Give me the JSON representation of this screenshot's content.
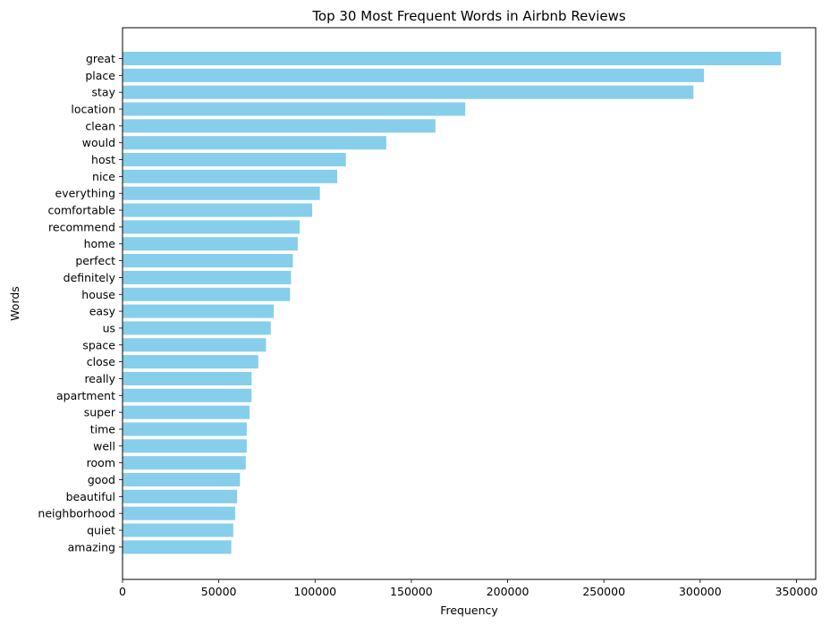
{
  "chart_data": {
    "type": "bar",
    "orientation": "horizontal",
    "title": "Top 30 Most Frequent Words in Airbnb Reviews",
    "xlabel": "Frequency",
    "ylabel": "Words",
    "xlim": [
      0,
      360000
    ],
    "xticks": [
      0,
      50000,
      100000,
      150000,
      200000,
      250000,
      300000,
      350000
    ],
    "xtick_labels": [
      "0",
      "50000",
      "100000",
      "150000",
      "200000",
      "250000",
      "300000",
      "350000"
    ],
    "bar_color": "#87ceeb",
    "grid": false,
    "categories": [
      "great",
      "place",
      "stay",
      "location",
      "clean",
      "would",
      "host",
      "nice",
      "everything",
      "comfortable",
      "recommend",
      "home",
      "perfect",
      "definitely",
      "house",
      "easy",
      "us",
      "space",
      "close",
      "really",
      "apartment",
      "super",
      "time",
      "well",
      "room",
      "good",
      "beautiful",
      "neighborhood",
      "quiet",
      "amazing"
    ],
    "values": [
      342000,
      302000,
      296500,
      178000,
      162500,
      137000,
      116000,
      111500,
      102500,
      98500,
      92000,
      91000,
      88500,
      87500,
      87000,
      78500,
      77000,
      74500,
      70500,
      67000,
      67000,
      66000,
      64500,
      64500,
      64000,
      61000,
      59500,
      58500,
      57500,
      56500
    ]
  }
}
